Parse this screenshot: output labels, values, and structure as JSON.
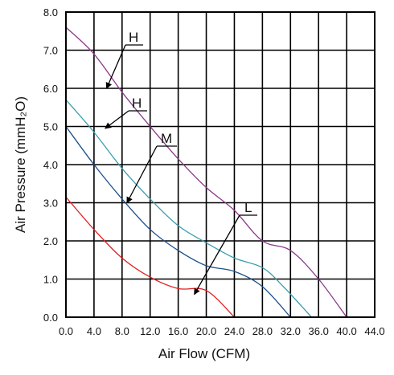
{
  "chart_data": {
    "type": "line",
    "xlabel": "Air Flow (CFM)",
    "ylabel": "Air Pressure (mmH₂O)",
    "xlim": [
      0,
      44
    ],
    "ylim": [
      0,
      8
    ],
    "grid": true,
    "x_ticks": [
      "0.0",
      "4.0",
      "8.0",
      "12.0",
      "16.0",
      "20.0",
      "24.0",
      "28.0",
      "32.0",
      "36.0",
      "40.0",
      "44.0"
    ],
    "y_ticks": [
      "0.0",
      "1.0",
      "2.0",
      "3.0",
      "4.0",
      "5.0",
      "6.0",
      "7.0",
      "8.0"
    ],
    "series": [
      {
        "name": "H",
        "color": "#8b3a8b",
        "points": [
          [
            0,
            7.6
          ],
          [
            4,
            6.9
          ],
          [
            8,
            5.9
          ],
          [
            12,
            5.0
          ],
          [
            16,
            4.15
          ],
          [
            20,
            3.4
          ],
          [
            24,
            2.8
          ],
          [
            28,
            2.0
          ],
          [
            32,
            1.75
          ],
          [
            36,
            1.0
          ],
          [
            40,
            0.0
          ]
        ]
      },
      {
        "name": "H",
        "color": "#3a9faf",
        "points": [
          [
            0,
            5.7
          ],
          [
            4,
            4.85
          ],
          [
            8,
            3.9
          ],
          [
            12,
            3.1
          ],
          [
            16,
            2.4
          ],
          [
            20,
            1.95
          ],
          [
            24,
            1.55
          ],
          [
            28,
            1.3
          ],
          [
            31,
            0.8
          ],
          [
            35,
            0.0
          ]
        ]
      },
      {
        "name": "M",
        "color": "#1a4f8a",
        "points": [
          [
            0,
            5.0
          ],
          [
            4,
            4.0
          ],
          [
            8,
            3.1
          ],
          [
            12,
            2.3
          ],
          [
            16,
            1.75
          ],
          [
            20,
            1.35
          ],
          [
            24,
            1.2
          ],
          [
            28,
            0.8
          ],
          [
            32,
            0.0
          ]
        ]
      },
      {
        "name": "L",
        "color": "#e02020",
        "points": [
          [
            0,
            3.15
          ],
          [
            4,
            2.3
          ],
          [
            8,
            1.55
          ],
          [
            12,
            1.05
          ],
          [
            16,
            0.75
          ],
          [
            20,
            0.7
          ],
          [
            24,
            0.0
          ]
        ]
      }
    ]
  }
}
